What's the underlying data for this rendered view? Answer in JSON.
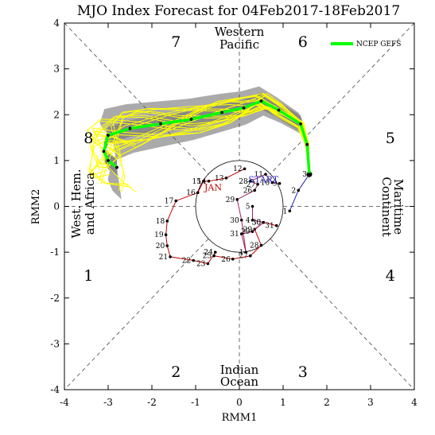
{
  "chart_data": {
    "type": "scatter",
    "title": "MJO Index Forecast for 04Feb2017-18Feb2017",
    "xlabel": "RMM1",
    "ylabel": "RMM2",
    "xlim": [
      -4,
      4
    ],
    "ylim": [
      -4,
      4
    ],
    "xticks": [
      "-4",
      "-3",
      "-2",
      "-1",
      "0",
      "1",
      "2",
      "3",
      "4"
    ],
    "yticks": [
      "-4",
      "-3",
      "-2",
      "-1",
      "0",
      "1",
      "2",
      "3",
      "4"
    ],
    "phase_labels": [
      {
        "text": "1",
        "x": -3.45,
        "y": -1.5
      },
      {
        "text": "2",
        "x": -1.45,
        "y": -3.6
      },
      {
        "text": "3",
        "x": 1.45,
        "y": -3.6
      },
      {
        "text": "4",
        "x": 3.45,
        "y": -1.5
      },
      {
        "text": "5",
        "x": 3.45,
        "y": 1.5
      },
      {
        "text": "6",
        "x": 1.45,
        "y": 3.6
      },
      {
        "text": "7",
        "x": -1.45,
        "y": 3.6
      },
      {
        "text": "8",
        "x": -3.45,
        "y": 1.5
      }
    ],
    "regions": {
      "top": [
        "Western",
        "Pacific"
      ],
      "bottom": [
        "Indian",
        "Ocean"
      ],
      "left": [
        "West. Hem.",
        "and Africa"
      ],
      "right": [
        "Maritime",
        "Continent"
      ]
    },
    "month_labels": [
      {
        "text": "JAN",
        "x": -0.6,
        "y": 0.35,
        "color": "#c00000"
      },
      {
        "text": "START",
        "x": 0.55,
        "y": 0.52,
        "color": "#3030c0"
      }
    ],
    "legend": {
      "label": "NCEP GEFS",
      "position": "top-right",
      "color": "#00ff00"
    },
    "observed_january": {
      "color": "#c00000",
      "points": [
        {
          "day": "12",
          "x": 0.12,
          "y": 0.82
        },
        {
          "day": "13",
          "x": -0.3,
          "y": 0.62
        },
        {
          "day": "14",
          "x": -0.7,
          "y": 0.55
        },
        {
          "day": "15",
          "x": -0.82,
          "y": 0.55
        },
        {
          "day": "16",
          "x": -0.95,
          "y": 0.3
        },
        {
          "day": "17",
          "x": -1.45,
          "y": 0.12
        },
        {
          "day": "18",
          "x": -1.65,
          "y": -0.32
        },
        {
          "day": "19",
          "x": -1.68,
          "y": -0.62
        },
        {
          "day": "20",
          "x": -1.65,
          "y": -0.86
        },
        {
          "day": "21",
          "x": -1.58,
          "y": -1.1
        },
        {
          "day": "22",
          "x": -1.05,
          "y": -1.18
        },
        {
          "day": "23",
          "x": -0.72,
          "y": -1.25
        },
        {
          "day": "24",
          "x": -0.55,
          "y": -1.0
        },
        {
          "day": "25",
          "x": -0.58,
          "y": -1.08
        },
        {
          "day": "26",
          "x": -0.15,
          "y": -1.15
        },
        {
          "day": "27",
          "x": 0.25,
          "y": -1.08
        },
        {
          "day": "28",
          "x": 0.5,
          "y": -0.85
        },
        {
          "day": "29",
          "x": 0.35,
          "y": -0.5
        },
        {
          "day": "30",
          "x": 0.55,
          "y": -0.35
        },
        {
          "day": "31",
          "x": 0.85,
          "y": -0.42
        }
      ]
    },
    "observed_february": {
      "color": "#2020b0",
      "points": [
        {
          "day": "1",
          "x": 1.15,
          "y": -0.1
        },
        {
          "day": "2",
          "x": 1.35,
          "y": 0.35
        },
        {
          "day": "3",
          "x": 1.6,
          "y": 0.7
        }
      ]
    },
    "inner_loop": {
      "color": "#a02060",
      "points": [
        {
          "day": "5",
          "x": 0.3,
          "y": 0.0
        },
        {
          "day": "4",
          "x": 0.3,
          "y": -0.3
        },
        {
          "day": "30",
          "x": 0.55,
          "y": -0.35
        },
        {
          "day": "29",
          "x": 0.3,
          "y": -0.55
        },
        {
          "day": "31",
          "x": 0.05,
          "y": -0.6
        },
        {
          "day": "1",
          "x": 0.15,
          "y": -1.0
        },
        {
          "day": "30",
          "x": 0.05,
          "y": -0.3
        },
        {
          "day": "29",
          "x": -0.05,
          "y": 0.15
        },
        {
          "day": "26",
          "x": 0.35,
          "y": 0.35
        },
        {
          "day": "27",
          "x": 0.42,
          "y": 0.48
        },
        {
          "day": "28",
          "x": 0.25,
          "y": 0.55
        },
        {
          "day": "11",
          "x": 0.6,
          "y": 0.7
        },
        {
          "day": "10",
          "x": 0.75,
          "y": 0.52
        },
        {
          "day": "9",
          "x": 0.92,
          "y": 0.5
        }
      ]
    },
    "forecast_mean": {
      "name": "NCEP GEFS",
      "color": "#00ff00",
      "points": [
        {
          "x": 1.6,
          "y": 0.7
        },
        {
          "x": 1.55,
          "y": 1.35
        },
        {
          "x": 1.4,
          "y": 1.8
        },
        {
          "x": 0.9,
          "y": 2.1
        },
        {
          "x": 0.5,
          "y": 2.3
        },
        {
          "x": 0.1,
          "y": 2.15
        },
        {
          "x": -0.4,
          "y": 2.05
        },
        {
          "x": -1.1,
          "y": 1.9
        },
        {
          "x": -1.8,
          "y": 1.8
        },
        {
          "x": -2.5,
          "y": 1.7
        },
        {
          "x": -3.0,
          "y": 1.55
        },
        {
          "x": -3.1,
          "y": 1.2
        },
        {
          "x": -3.0,
          "y": 1.0
        },
        {
          "x": -2.8,
          "y": 0.85
        }
      ]
    },
    "ensemble_count": 20
  }
}
